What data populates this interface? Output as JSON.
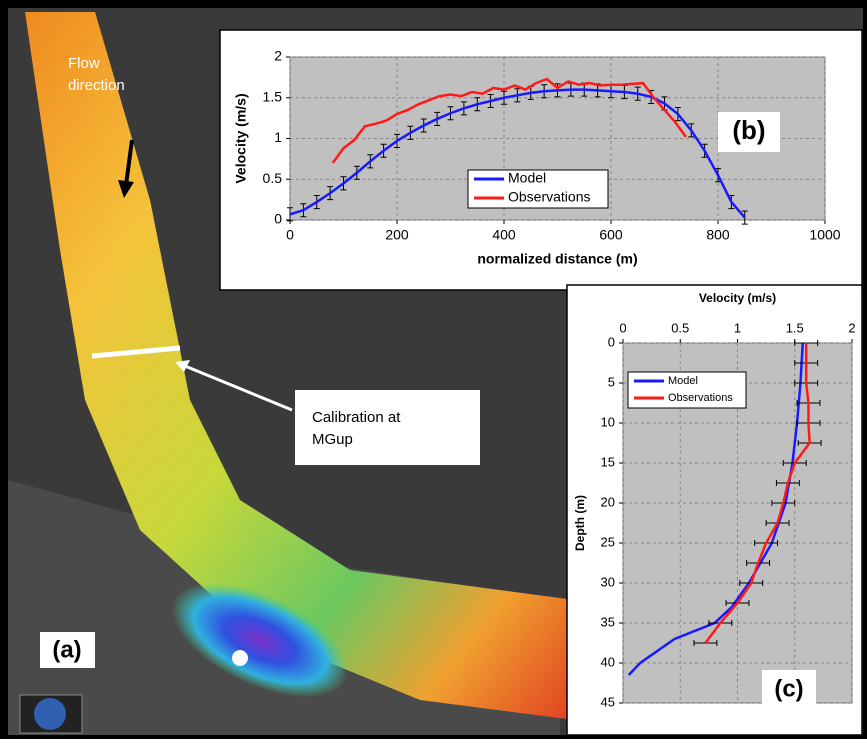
{
  "map": {
    "panel_label": "(a)",
    "annotations": [
      "Flow direction",
      "Calibration at MGup"
    ]
  },
  "chart_data": [
    {
      "type": "line",
      "panel_label": "(b)",
      "x_label": "normalized distance (m)",
      "y_label": "Velocity (m/s)",
      "xlim": [
        0,
        1000
      ],
      "xticks": [
        0,
        200,
        400,
        600,
        800,
        1000
      ],
      "ylim": [
        0,
        2
      ],
      "yticks": [
        0,
        0.5,
        1,
        1.5,
        2
      ],
      "grid": true,
      "series": [
        {
          "name": "Model",
          "color": "#1a1aff",
          "x": [
            0,
            25,
            50,
            75,
            100,
            125,
            150,
            175,
            200,
            225,
            250,
            275,
            300,
            325,
            350,
            375,
            400,
            425,
            450,
            475,
            500,
            525,
            550,
            575,
            600,
            625,
            650,
            675,
            700,
            725,
            750,
            775,
            800,
            825,
            850
          ],
          "values": [
            0.07,
            0.12,
            0.22,
            0.33,
            0.45,
            0.58,
            0.72,
            0.85,
            0.97,
            1.07,
            1.16,
            1.24,
            1.31,
            1.37,
            1.42,
            1.46,
            1.5,
            1.53,
            1.56,
            1.58,
            1.59,
            1.6,
            1.6,
            1.59,
            1.58,
            1.57,
            1.55,
            1.51,
            1.43,
            1.3,
            1.1,
            0.85,
            0.55,
            0.22,
            0.03
          ],
          "errors": [
            0.08,
            0.08,
            0.08,
            0.08,
            0.08,
            0.08,
            0.08,
            0.08,
            0.08,
            0.08,
            0.08,
            0.08,
            0.08,
            0.08,
            0.08,
            0.08,
            0.08,
            0.08,
            0.08,
            0.08,
            0.08,
            0.08,
            0.08,
            0.08,
            0.08,
            0.08,
            0.08,
            0.08,
            0.08,
            0.08,
            0.08,
            0.08,
            0.08,
            0.08,
            0.08
          ]
        },
        {
          "name": "Observations",
          "color": "#ff1a1a",
          "x": [
            80,
            100,
            120,
            140,
            160,
            180,
            200,
            220,
            240,
            260,
            280,
            300,
            320,
            340,
            360,
            380,
            400,
            420,
            440,
            460,
            480,
            500,
            520,
            540,
            560,
            580,
            600,
            620,
            640,
            660,
            680,
            700,
            720,
            740
          ],
          "values": [
            0.7,
            0.88,
            0.98,
            1.15,
            1.18,
            1.22,
            1.3,
            1.35,
            1.42,
            1.47,
            1.52,
            1.54,
            1.52,
            1.57,
            1.55,
            1.62,
            1.6,
            1.65,
            1.6,
            1.68,
            1.73,
            1.62,
            1.7,
            1.66,
            1.68,
            1.65,
            1.66,
            1.66,
            1.67,
            1.68,
            1.5,
            1.35,
            1.2,
            1.02
          ]
        }
      ]
    },
    {
      "type": "line",
      "orientation": "vertical",
      "panel_label": "(c)",
      "x_label": "Velocity (m/s)",
      "y_label": "Depth (m)",
      "xlim": [
        0,
        2
      ],
      "xticks": [
        0,
        0.5,
        1,
        1.5,
        2
      ],
      "ylim": [
        0,
        45
      ],
      "yticks": [
        0,
        5,
        10,
        15,
        20,
        25,
        30,
        35,
        40,
        45
      ],
      "grid": true,
      "series": [
        {
          "name": "Model",
          "color": "#1a1aff",
          "depth": [
            0,
            5,
            10,
            15,
            20,
            25,
            30,
            33,
            35,
            37,
            40,
            41.5
          ],
          "values": [
            1.57,
            1.55,
            1.52,
            1.48,
            1.42,
            1.3,
            1.1,
            0.95,
            0.8,
            0.45,
            0.15,
            0.05
          ]
        },
        {
          "name": "Observations",
          "color": "#ff1a1a",
          "depth": [
            0,
            2.5,
            5,
            7.5,
            10,
            12.5,
            15,
            17.5,
            20,
            22.5,
            25,
            27.5,
            30,
            32.5,
            35,
            37.5
          ],
          "values": [
            1.6,
            1.6,
            1.6,
            1.62,
            1.62,
            1.63,
            1.5,
            1.44,
            1.4,
            1.35,
            1.25,
            1.18,
            1.12,
            1.0,
            0.85,
            0.72
          ],
          "errors": [
            0.1,
            0.1,
            0.1,
            0.1,
            0.1,
            0.1,
            0.1,
            0.1,
            0.1,
            0.1,
            0.1,
            0.1,
            0.1,
            0.1,
            0.1,
            0.1
          ]
        }
      ]
    }
  ]
}
